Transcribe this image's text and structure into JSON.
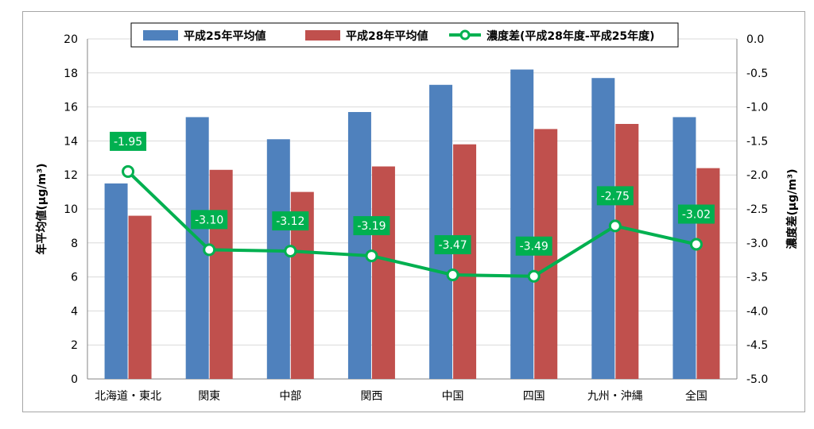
{
  "chart_data": {
    "type": "bar",
    "categories": [
      "北海道・東北",
      "関東",
      "中部",
      "関西",
      "中国",
      "四国",
      "九州・沖縄",
      "全国"
    ],
    "series": [
      {
        "name": "平成25年平均値",
        "axis": "left",
        "kind": "bar",
        "color": "#4f81bd",
        "values": [
          11.5,
          15.4,
          14.1,
          15.7,
          17.3,
          18.2,
          17.7,
          15.4
        ]
      },
      {
        "name": "平成28年平均値",
        "axis": "left",
        "kind": "bar",
        "color": "#c0504d",
        "values": [
          9.6,
          12.3,
          11.0,
          12.5,
          13.8,
          14.7,
          15.0,
          12.4
        ]
      },
      {
        "name": "濃度差(平成28年度-平成25年度)",
        "axis": "right",
        "kind": "line",
        "color": "#00b050",
        "values": [
          -1.95,
          -3.1,
          -3.12,
          -3.19,
          -3.47,
          -3.49,
          -2.75,
          -3.02
        ],
        "labels": [
          "-1.95",
          "-3.10",
          "-3.12",
          "-3.19",
          "-3.47",
          "-3.49",
          "-2.75",
          "-3.02"
        ]
      }
    ],
    "ylabel": "年平均値(μg/m³)",
    "y2label": "濃度差(μg/m³)",
    "ylim": [
      0,
      20
    ],
    "y2lim": [
      -5.0,
      0.0
    ],
    "yticks": [
      "0",
      "2",
      "4",
      "6",
      "8",
      "10",
      "12",
      "14",
      "16",
      "18",
      "20"
    ],
    "y2ticks": [
      "-5.0",
      "-4.5",
      "-4.0",
      "-3.5",
      "-3.0",
      "-2.5",
      "-2.0",
      "-1.5",
      "-1.0",
      "-0.5",
      "0.0"
    ],
    "grid": true,
    "legend_position": "top"
  }
}
